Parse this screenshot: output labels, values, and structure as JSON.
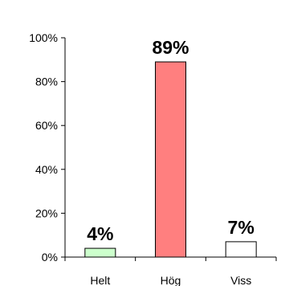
{
  "chart_data": {
    "type": "bar",
    "categories": [
      "Helt",
      "Hög",
      "Viss"
    ],
    "values": [
      4,
      89,
      7
    ],
    "data_labels": [
      "4%",
      "89%",
      "7%"
    ],
    "colors": [
      "#ccffcc",
      "#ff7f7f",
      "#ffffff"
    ],
    "ylim": [
      0,
      100
    ],
    "yticks": [
      0,
      20,
      40,
      60,
      80,
      100
    ],
    "ytick_labels": [
      "0%",
      "20%",
      "40%",
      "60%",
      "80%",
      "100%"
    ],
    "grid": false,
    "legend": "none",
    "title": "",
    "xlabel": "",
    "ylabel": ""
  }
}
